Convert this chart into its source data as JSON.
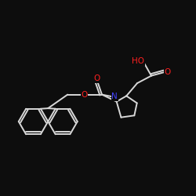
{
  "background_color": "#0d0d0d",
  "bond_color": "#d8d8d8",
  "atom_colors": {
    "O": "#ff2020",
    "N": "#4444ff",
    "C": "#d8d8d8"
  },
  "figsize": [
    2.5,
    2.5
  ],
  "dpi": 100,
  "lw": 1.4,
  "fontsize": 7.5,
  "xlim": [
    0,
    10
  ],
  "ylim": [
    0,
    10
  ]
}
